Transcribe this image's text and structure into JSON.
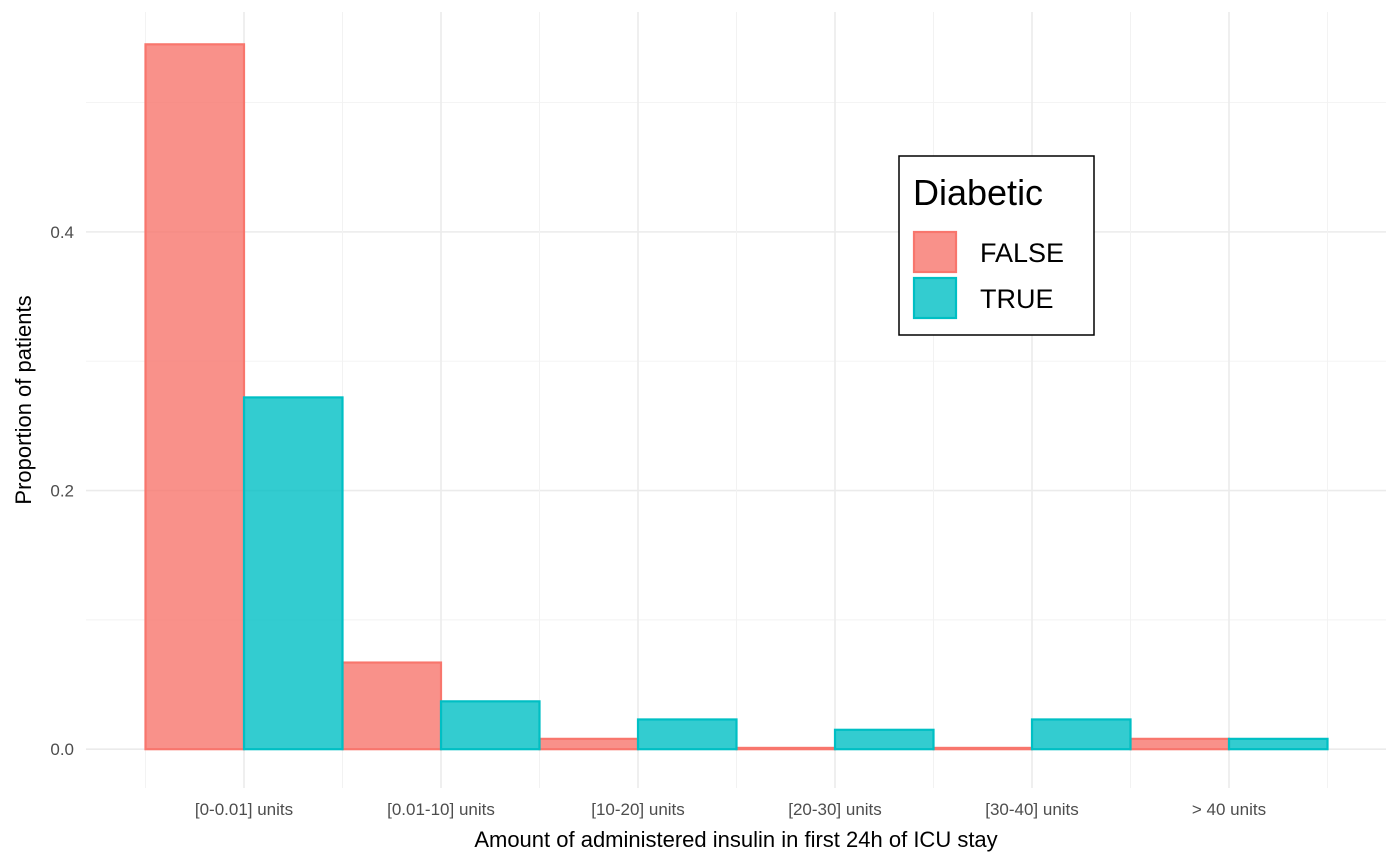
{
  "chart_data": {
    "type": "bar",
    "title": "",
    "xlabel": "Amount of administered insulin in first 24h of ICU stay",
    "ylabel": "Proportion of patients",
    "categories": [
      "[0-0.01] units",
      "[0.01-10] units",
      "[10-20] units",
      "[20-30] units",
      "[30-40] units",
      "> 40 units"
    ],
    "series": [
      {
        "name": "FALSE",
        "fill": "#f8766d",
        "values": [
          0.545,
          0.067,
          0.008,
          0.001,
          0.001,
          0.008
        ]
      },
      {
        "name": "TRUE",
        "fill": "#00bfc4",
        "values": [
          0.272,
          0.037,
          0.023,
          0.015,
          0.023,
          0.008
        ]
      }
    ],
    "ylim": [
      -0.03,
      0.57
    ],
    "yticks": [
      0.0,
      0.2,
      0.4
    ],
    "ytick_labels": [
      "0.0",
      "0.2",
      "0.4"
    ],
    "grid": true,
    "legend": {
      "title": "Diabetic",
      "placement": "top-right"
    }
  }
}
